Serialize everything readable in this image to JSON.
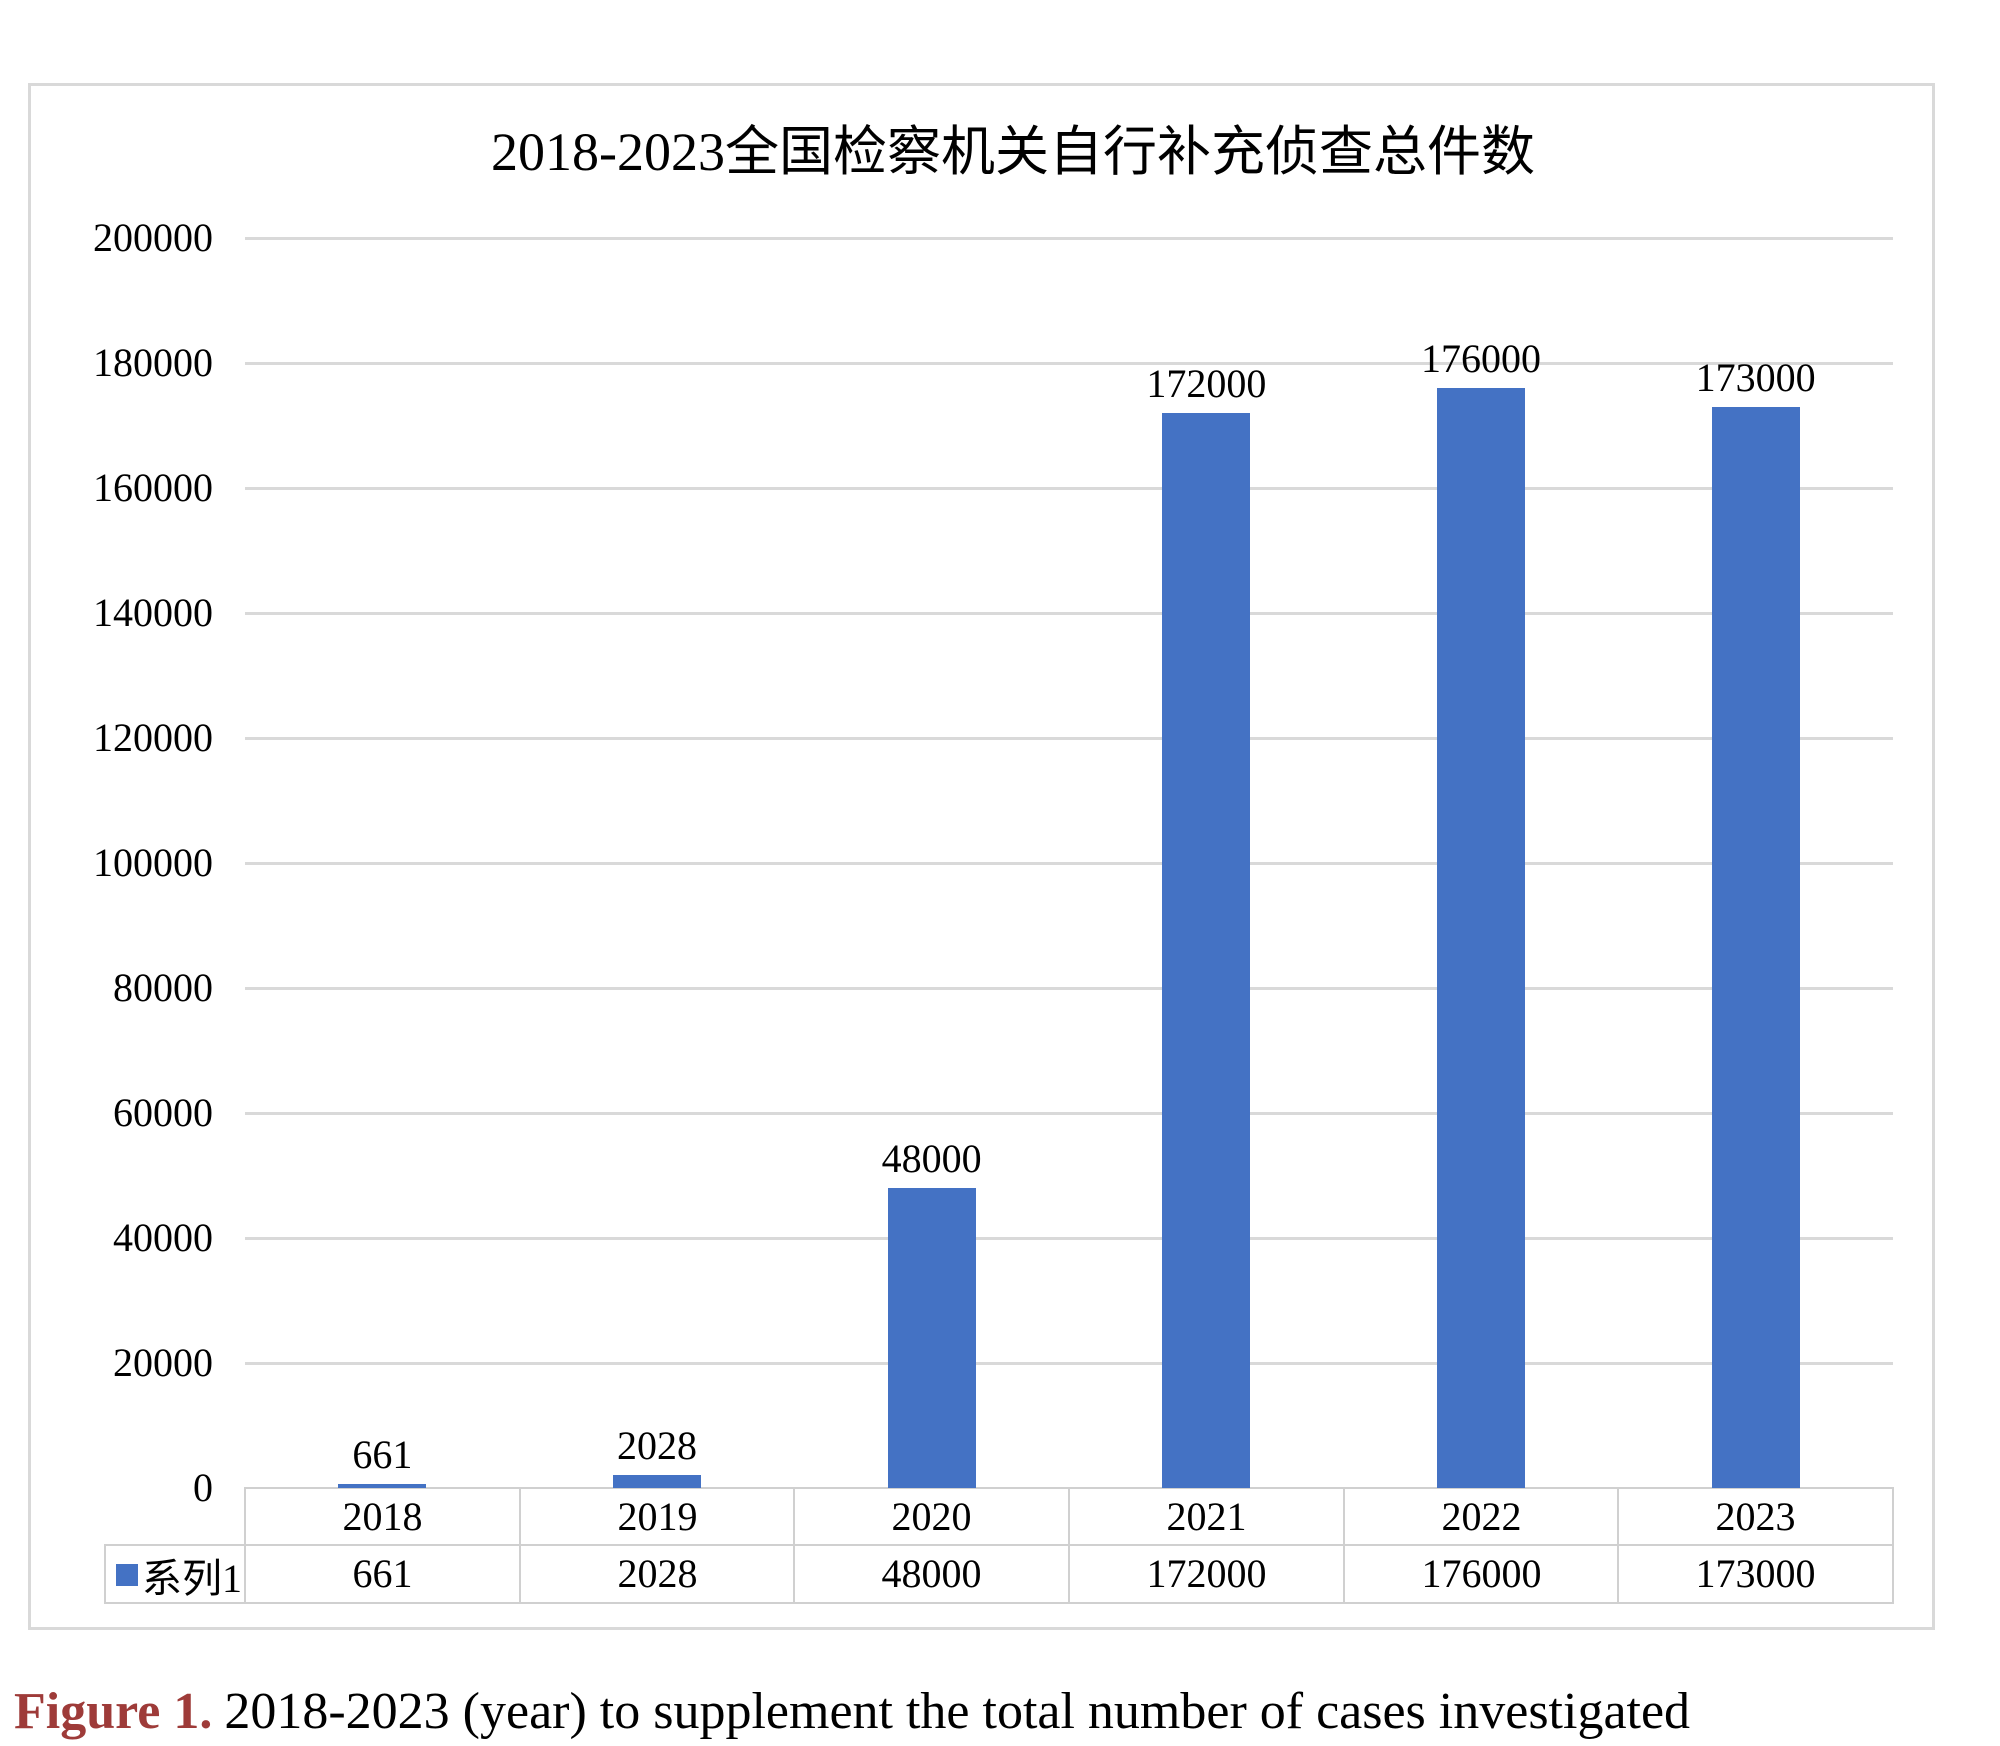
{
  "chart_data": {
    "type": "bar",
    "title": "2018-2023全国检察机关自行补充侦查总件数",
    "categories": [
      "2018",
      "2019",
      "2020",
      "2021",
      "2022",
      "2023"
    ],
    "series": [
      {
        "name": "系列1",
        "values": [
          661,
          2028,
          48000,
          172000,
          176000,
          173000
        ]
      }
    ],
    "data_labels": [
      "661",
      "2028",
      "48000",
      "172000",
      "176000",
      "173000"
    ],
    "xlabel": "",
    "ylabel": "",
    "ylim": [
      0,
      200000
    ],
    "ytick_interval": 20000,
    "ytick_labels": [
      "200000",
      "180000",
      "160000",
      "140000",
      "120000",
      "100000",
      "80000",
      "60000",
      "40000",
      "20000",
      "0"
    ],
    "grid": true,
    "legend_position": "data-table-left",
    "colors": {
      "bar": "#4472c4",
      "gridline": "#d9d9d9",
      "table_border": "#d0d0d0",
      "chart_border": "#d9d9d9",
      "text": "#000000"
    }
  },
  "figure": {
    "caption_label": "Figure 1.",
    "caption_text": "2018-2023 (year) to supplement the total number of cases investigated",
    "caption_label_color": "#9e3b39"
  }
}
